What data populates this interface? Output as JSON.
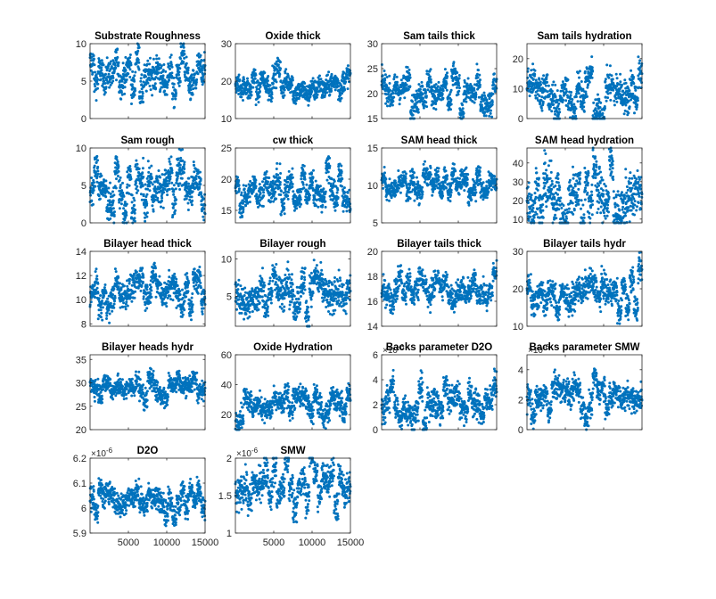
{
  "figure": {
    "background": "#ffffff",
    "marker_color": "#0072BD"
  },
  "chart_data": [
    {
      "type": "scatter",
      "title": "Substrate Roughness",
      "xlim": [
        1,
        15000
      ],
      "ylim": [
        0,
        10
      ],
      "yticks": [
        "0",
        "5",
        "10"
      ],
      "mean": 6,
      "spread": 1.6,
      "grid": false
    },
    {
      "type": "scatter",
      "title": "Oxide thick",
      "xlim": [
        1,
        15000
      ],
      "ylim": [
        10,
        30
      ],
      "yticks": [
        "10",
        "20",
        "30"
      ],
      "mean": 19,
      "spread": 2.3,
      "grid": false
    },
    {
      "type": "scatter",
      "title": "Sam tails thick",
      "xlim": [
        1,
        15000
      ],
      "ylim": [
        15,
        30
      ],
      "yticks": [
        "15",
        "20",
        "25",
        "30"
      ],
      "mean": 21,
      "spread": 2.0,
      "grid": false
    },
    {
      "type": "scatter",
      "title": "Sam tails hydration",
      "xlim": [
        1,
        15000
      ],
      "ylim": [
        0,
        25
      ],
      "yticks": [
        "0",
        "10",
        "20"
      ],
      "mean": 8,
      "spread": 4.5,
      "grid": false
    },
    {
      "type": "scatter",
      "title": "Sam rough",
      "xlim": [
        1,
        15000
      ],
      "ylim": [
        0,
        10
      ],
      "yticks": [
        "0",
        "5",
        "10"
      ],
      "mean": 4,
      "spread": 1.8,
      "grid": false
    },
    {
      "type": "scatter",
      "title": "cw thick",
      "xlim": [
        1,
        15000
      ],
      "ylim": [
        13,
        25
      ],
      "yticks": [
        "15",
        "20",
        "25"
      ],
      "mean": 18.5,
      "spread": 1.7,
      "grid": false
    },
    {
      "type": "scatter",
      "title": "SAM head thick",
      "xlim": [
        1,
        15000
      ],
      "ylim": [
        5,
        15
      ],
      "yticks": [
        "5",
        "10",
        "15"
      ],
      "mean": 10.3,
      "spread": 1.1,
      "grid": false
    },
    {
      "type": "scatter",
      "title": "SAM head hydration",
      "xlim": [
        1,
        15000
      ],
      "ylim": [
        8,
        48
      ],
      "yticks": [
        "10",
        "20",
        "30",
        "40"
      ],
      "mean": 24,
      "spread": 10,
      "grid": false
    },
    {
      "type": "scatter",
      "title": "Bilayer head thick",
      "xlim": [
        1,
        15000
      ],
      "ylim": [
        7.8,
        14
      ],
      "yticks": [
        "8",
        "10",
        "12",
        "14"
      ],
      "mean": 10.8,
      "spread": 0.9,
      "grid": false
    },
    {
      "type": "scatter",
      "title": "Bilayer rough",
      "xlim": [
        1,
        15000
      ],
      "ylim": [
        1,
        11
      ],
      "yticks": [
        "5",
        "10"
      ],
      "mean": 5.5,
      "spread": 1.8,
      "grid": false
    },
    {
      "type": "scatter",
      "title": "Bilayer tails thick",
      "xlim": [
        1,
        15000
      ],
      "ylim": [
        14,
        20
      ],
      "yticks": [
        "14",
        "16",
        "18",
        "20"
      ],
      "mean": 16.8,
      "spread": 0.8,
      "grid": false
    },
    {
      "type": "scatter",
      "title": "Bilayer tails hydr",
      "xlim": [
        1,
        15000
      ],
      "ylim": [
        10,
        30
      ],
      "yticks": [
        "10",
        "20",
        "30"
      ],
      "mean": 18.5,
      "spread": 2.8,
      "grid": false
    },
    {
      "type": "scatter",
      "title": "Bilayer heads hydr",
      "xlim": [
        1,
        15000
      ],
      "ylim": [
        20,
        36
      ],
      "yticks": [
        "20",
        "25",
        "30",
        "35"
      ],
      "mean": 29,
      "spread": 1.8,
      "grid": false
    },
    {
      "type": "scatter",
      "title": "Oxide Hydration",
      "xlim": [
        1,
        15000
      ],
      "ylim": [
        10,
        60
      ],
      "yticks": [
        "20",
        "40",
        "60"
      ],
      "mean": 28,
      "spread": 6,
      "grid": false
    },
    {
      "type": "scatter",
      "title": "Backs parameter D2O",
      "xlim": [
        1,
        15000
      ],
      "ylim": [
        0,
        6
      ],
      "yticks": [
        "0",
        "2",
        "4",
        "6"
      ],
      "exponent": "×10^-6",
      "mean": 2.3,
      "spread": 0.9,
      "grid": false
    },
    {
      "type": "scatter",
      "title": "Backs parameter SMW",
      "xlim": [
        1,
        15000
      ],
      "ylim": [
        0,
        5
      ],
      "yticks": [
        "0",
        "2",
        "4"
      ],
      "exponent": "×10^-6",
      "mean": 2.1,
      "spread": 0.7,
      "grid": false
    },
    {
      "type": "scatter",
      "title": "D2O",
      "xlim": [
        1,
        15000
      ],
      "ylim": [
        5.9,
        6.2
      ],
      "yticks": [
        "5.9",
        "6",
        "6.1",
        "6.2"
      ],
      "exponent": "×10^-6",
      "xticks": [
        "5000",
        "10000",
        "15000"
      ],
      "mean": 6.03,
      "spread": 0.04,
      "grid": false
    },
    {
      "type": "scatter",
      "title": "SMW",
      "xlim": [
        1,
        15000
      ],
      "ylim": [
        1,
        2
      ],
      "yticks": [
        "1",
        "1.5",
        "2"
      ],
      "exponent": "×10^-6",
      "xticks": [
        "5000",
        "10000",
        "15000"
      ],
      "mean": 1.6,
      "spread": 0.18,
      "grid": false
    }
  ]
}
